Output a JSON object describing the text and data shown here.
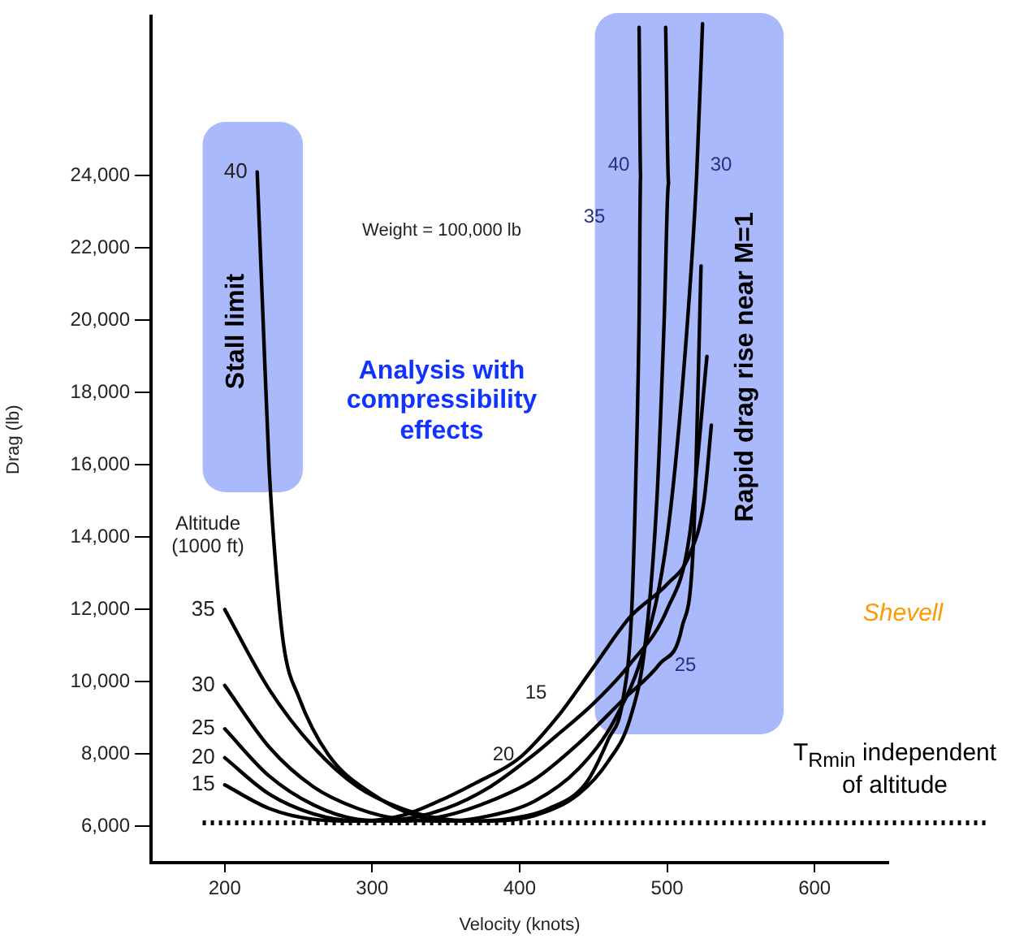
{
  "chart_data": {
    "type": "line",
    "xlabel": "Velocity (knots)",
    "ylabel": "Drag (lb)",
    "legend_title": "Altitude (1000 ft)",
    "xlim": [
      150,
      650
    ],
    "xticks": [
      200,
      300,
      400,
      500,
      600
    ],
    "ylim": [
      5000,
      28400
    ],
    "yticks": [
      {
        "value": 6000,
        "label": "6,000"
      },
      {
        "value": 8000,
        "label": "8,000"
      },
      {
        "value": 10000,
        "label": "10,000"
      },
      {
        "value": 12000,
        "label": "12,000"
      },
      {
        "value": 14000,
        "label": "14,000"
      },
      {
        "value": 16000,
        "label": "16,000"
      },
      {
        "value": 18000,
        "label": "18,000"
      },
      {
        "value": 20000,
        "label": "20,000"
      },
      {
        "value": 22000,
        "label": "22,000"
      },
      {
        "value": 24000,
        "label": "24,000"
      }
    ],
    "grid": false,
    "legend": false,
    "marker": "none",
    "line_style": "solid",
    "series": [
      {
        "name": "15",
        "color": "#000000",
        "x": [
          200,
          230,
          260,
          290,
          320,
          345,
          370,
          400,
          425,
          450,
          475,
          500,
          515,
          525,
          530
        ],
        "values": [
          7150,
          6500,
          6200,
          6150,
          6300,
          6700,
          7200,
          7900,
          9000,
          10400,
          11800,
          12700,
          13500,
          15000,
          17100
        ]
      },
      {
        "name": "20",
        "color": "#000000",
        "x": [
          200,
          230,
          260,
          290,
          320,
          350,
          380,
          410,
          424,
          450,
          475,
          500,
          515,
          527
        ],
        "values": [
          7900,
          6900,
          6350,
          6150,
          6200,
          6500,
          7100,
          8000,
          8480,
          9400,
          10500,
          12000,
          14000,
          19000
        ]
      },
      {
        "name": "25",
        "color": "#000000",
        "x": [
          200,
          230,
          260,
          290,
          320,
          350,
          380,
          410,
          440,
          470,
          495,
          510,
          518,
          523
        ],
        "values": [
          8700,
          7400,
          6600,
          6200,
          6150,
          6300,
          6700,
          7300,
          8300,
          9500,
          10500,
          11500,
          14000,
          21500
        ]
      },
      {
        "name": "30",
        "color": "#000000",
        "x": [
          200,
          230,
          260,
          290,
          320,
          350,
          380,
          410,
          440,
          465,
          485,
          500,
          512,
          520,
          524
        ],
        "values": [
          9900,
          8200,
          7100,
          6500,
          6200,
          6150,
          6300,
          6700,
          7600,
          9000,
          11000,
          14000,
          19000,
          24000,
          28200
        ]
      },
      {
        "name": "35",
        "color": "#000000",
        "x": [
          200,
          230,
          260,
          290,
          320,
          350,
          380,
          410,
          440,
          460,
          475,
          485,
          493,
          498,
          501,
          499
        ],
        "values": [
          12000,
          9800,
          8200,
          7100,
          6500,
          6200,
          6150,
          6300,
          6900,
          7800,
          9000,
          11000,
          15000,
          20000,
          23800,
          28100
        ]
      },
      {
        "name": "40",
        "color": "#000000",
        "x": [
          222,
          226,
          230,
          234,
          240,
          250,
          270,
          300,
          330,
          360,
          390,
          420,
          445,
          460,
          470,
          476,
          479,
          481,
          482,
          481
        ],
        "values": [
          24100,
          20000,
          16000,
          13500,
          11000,
          9600,
          8000,
          6900,
          6300,
          6150,
          6200,
          6500,
          7200,
          8400,
          9500,
          12000,
          16000,
          20000,
          24000,
          28100
        ]
      }
    ],
    "ref_lines": [
      {
        "axis": "y",
        "value": 6100,
        "line_style": "dotted",
        "color": "#000000"
      }
    ],
    "bands": [
      {
        "axis": "x",
        "from": 185,
        "to": 253,
        "label": "Stall limit",
        "color": "#a9b9fc"
      },
      {
        "axis": "x",
        "from": 451,
        "to": 579,
        "label": "Rapid drag rise near M=1",
        "color": "#a9b9fc"
      }
    ],
    "annotations": [
      "Weight = 100,000 lb",
      "Analysis with compressibility effects",
      "Shevell",
      "T$_{Rmin}$ independent of altitude",
      "40",
      "35",
      "30",
      "25",
      "20",
      "15"
    ]
  }
}
